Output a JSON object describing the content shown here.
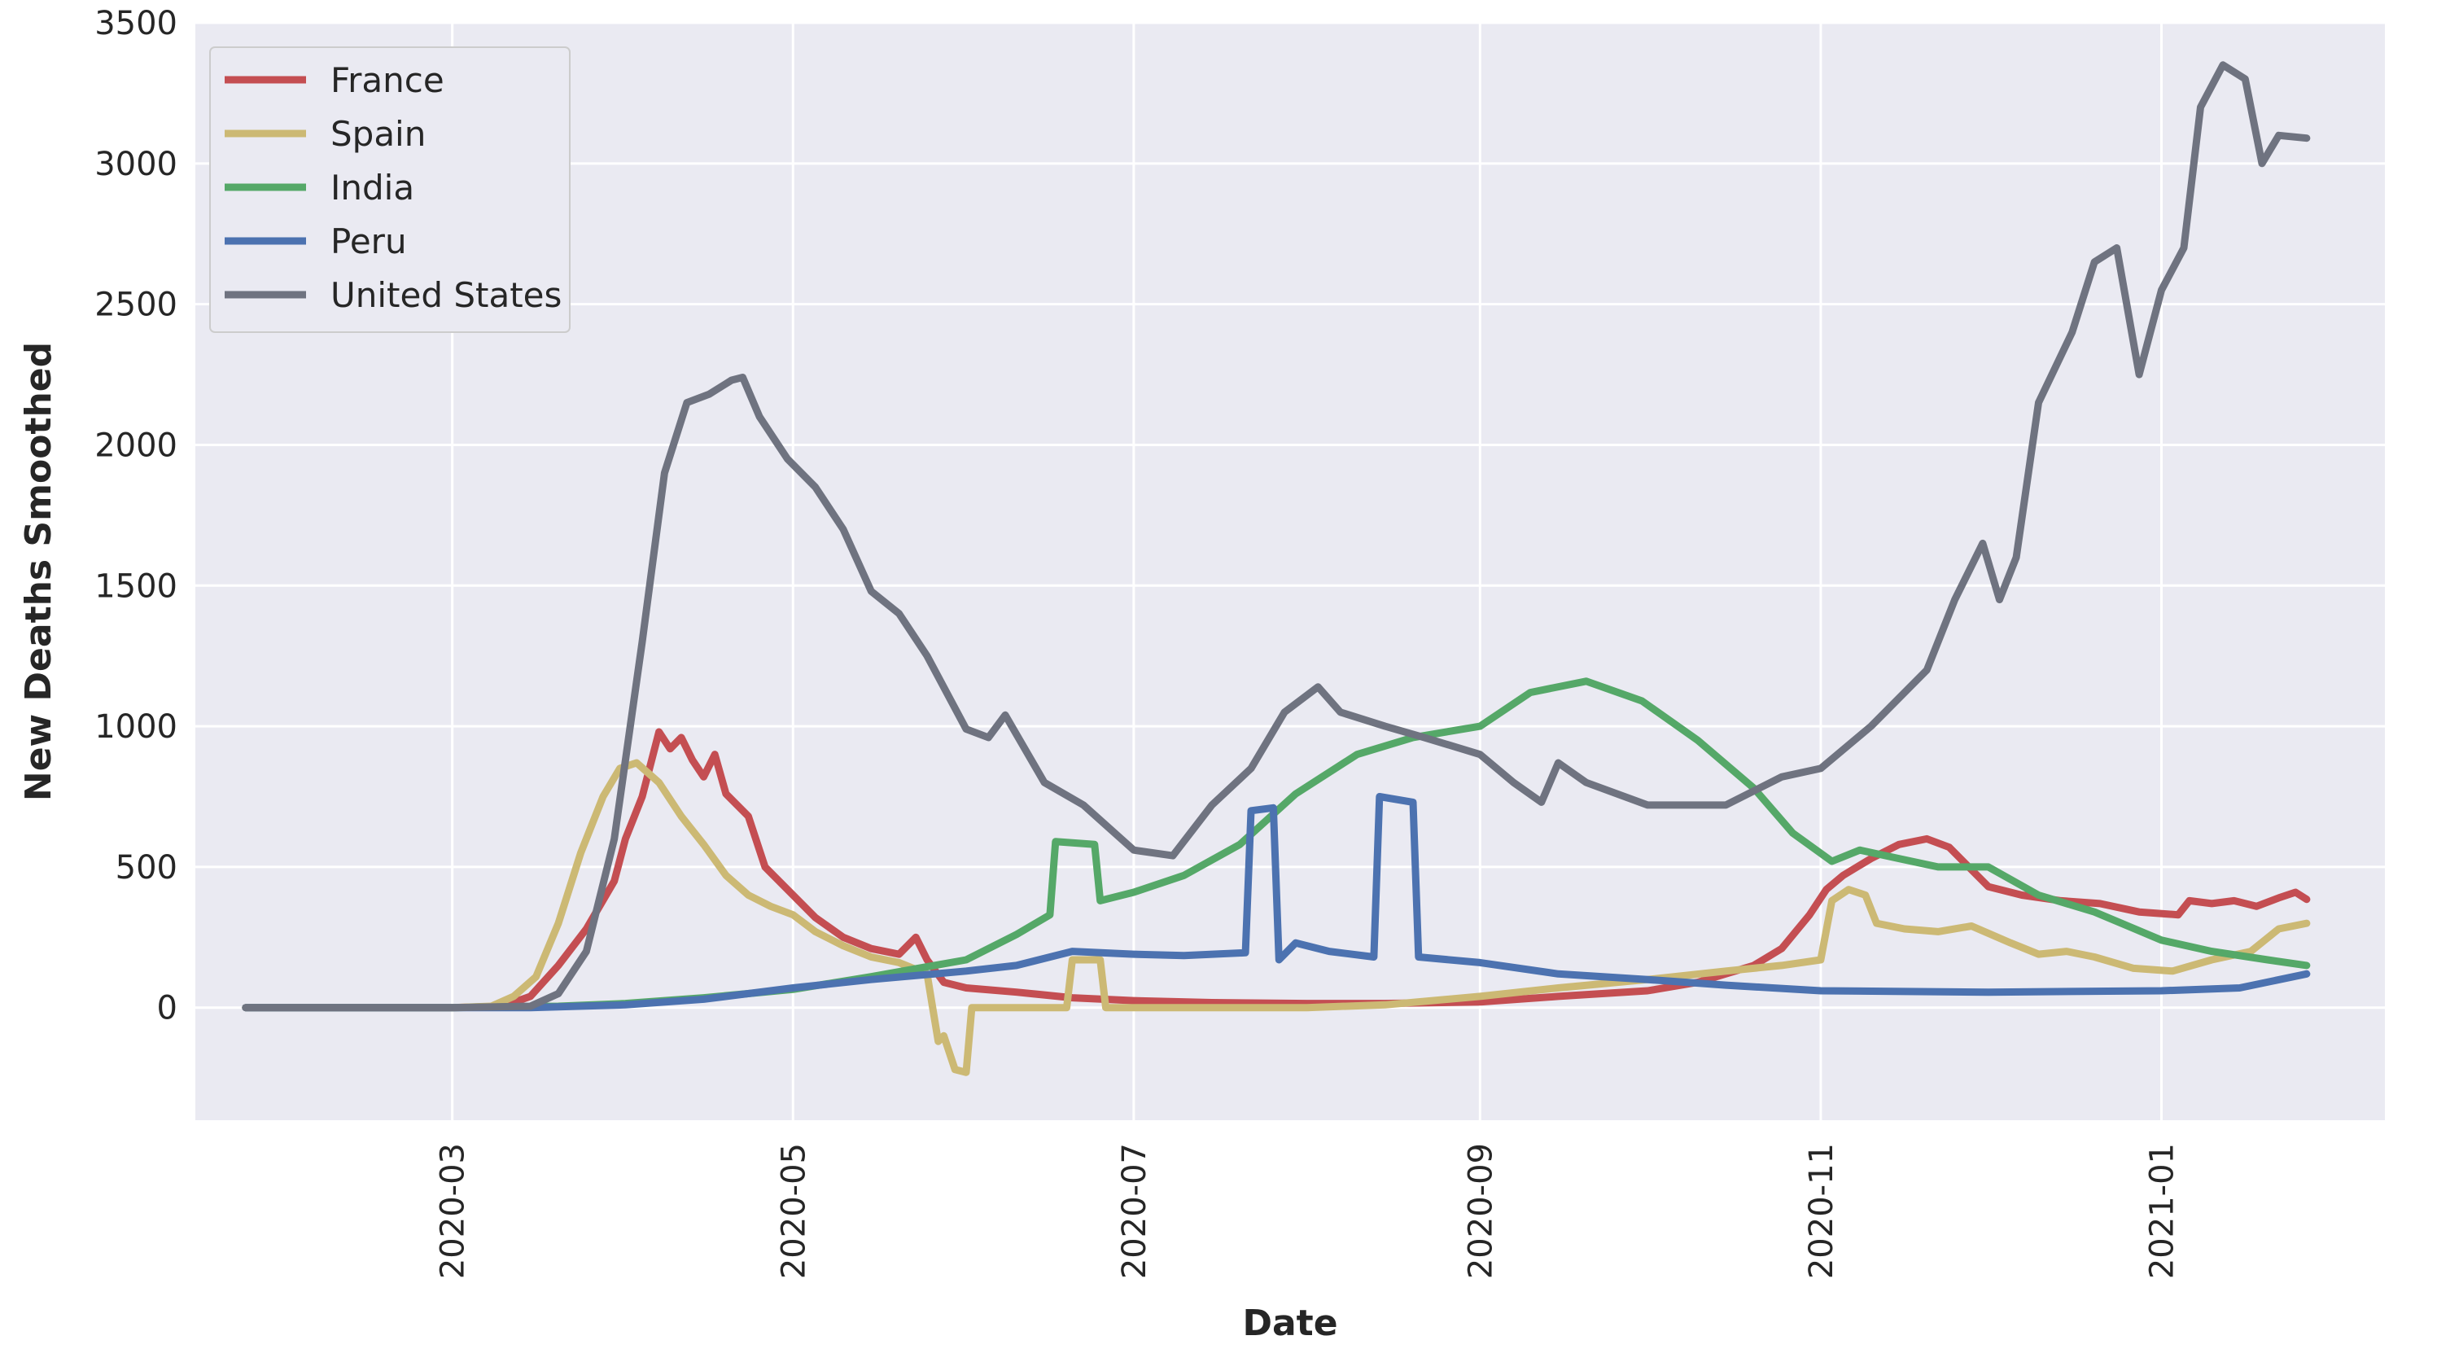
{
  "chart_data": {
    "type": "line",
    "xlabel": "Date",
    "ylabel": "New Deaths Smoothed",
    "xlim": [
      "2020-01-15",
      "2021-02-10"
    ],
    "ylim": [
      -400,
      3500
    ],
    "grid": true,
    "legend_position": "upper-left",
    "x_ticks": [
      "2020-03",
      "2020-05",
      "2020-07",
      "2020-09",
      "2020-11",
      "2021-01"
    ],
    "y_ticks": [
      "0",
      "500",
      "1000",
      "1500",
      "2000",
      "2500",
      "3000",
      "3500"
    ],
    "series": [
      {
        "name": "France",
        "color": "#c44e52",
        "points": [
          [
            "2020-01-24",
            0
          ],
          [
            "2020-02-15",
            0
          ],
          [
            "2020-03-01",
            0
          ],
          [
            "2020-03-10",
            5
          ],
          [
            "2020-03-15",
            40
          ],
          [
            "2020-03-20",
            150
          ],
          [
            "2020-03-25",
            280
          ],
          [
            "2020-03-30",
            450
          ],
          [
            "2020-04-01",
            600
          ],
          [
            "2020-04-04",
            750
          ],
          [
            "2020-04-07",
            980
          ],
          [
            "2020-04-09",
            920
          ],
          [
            "2020-04-11",
            960
          ],
          [
            "2020-04-13",
            880
          ],
          [
            "2020-04-15",
            820
          ],
          [
            "2020-04-17",
            900
          ],
          [
            "2020-04-19",
            760
          ],
          [
            "2020-04-23",
            680
          ],
          [
            "2020-04-26",
            500
          ],
          [
            "2020-04-30",
            420
          ],
          [
            "2020-05-05",
            320
          ],
          [
            "2020-05-10",
            250
          ],
          [
            "2020-05-15",
            210
          ],
          [
            "2020-05-20",
            190
          ],
          [
            "2020-05-23",
            250
          ],
          [
            "2020-05-25",
            170
          ],
          [
            "2020-05-28",
            90
          ],
          [
            "2020-06-01",
            70
          ],
          [
            "2020-06-10",
            55
          ],
          [
            "2020-06-20",
            35
          ],
          [
            "2020-07-01",
            25
          ],
          [
            "2020-07-15",
            18
          ],
          [
            "2020-08-01",
            15
          ],
          [
            "2020-08-15",
            15
          ],
          [
            "2020-09-01",
            20
          ],
          [
            "2020-09-15",
            40
          ],
          [
            "2020-10-01",
            60
          ],
          [
            "2020-10-10",
            90
          ],
          [
            "2020-10-20",
            150
          ],
          [
            "2020-10-25",
            210
          ],
          [
            "2020-10-30",
            330
          ],
          [
            "2020-11-02",
            420
          ],
          [
            "2020-11-05",
            470
          ],
          [
            "2020-11-10",
            530
          ],
          [
            "2020-11-15",
            580
          ],
          [
            "2020-11-20",
            600
          ],
          [
            "2020-11-24",
            570
          ],
          [
            "2020-11-28",
            490
          ],
          [
            "2020-12-01",
            430
          ],
          [
            "2020-12-07",
            400
          ],
          [
            "2020-12-14",
            380
          ],
          [
            "2020-12-21",
            370
          ],
          [
            "2020-12-28",
            340
          ],
          [
            "2021-01-04",
            330
          ],
          [
            "2021-01-06",
            380
          ],
          [
            "2021-01-10",
            370
          ],
          [
            "2021-01-14",
            380
          ],
          [
            "2021-01-18",
            360
          ],
          [
            "2021-01-22",
            390
          ],
          [
            "2021-01-25",
            410
          ],
          [
            "2021-01-27",
            385
          ]
        ]
      },
      {
        "name": "Spain",
        "color": "#ccb974",
        "points": [
          [
            "2020-01-24",
            0
          ],
          [
            "2020-02-15",
            0
          ],
          [
            "2020-03-01",
            0
          ],
          [
            "2020-03-08",
            5
          ],
          [
            "2020-03-12",
            40
          ],
          [
            "2020-03-16",
            110
          ],
          [
            "2020-03-20",
            300
          ],
          [
            "2020-03-24",
            550
          ],
          [
            "2020-03-28",
            750
          ],
          [
            "2020-03-31",
            850
          ],
          [
            "2020-04-03",
            870
          ],
          [
            "2020-04-07",
            800
          ],
          [
            "2020-04-11",
            680
          ],
          [
            "2020-04-15",
            580
          ],
          [
            "2020-04-19",
            470
          ],
          [
            "2020-04-23",
            400
          ],
          [
            "2020-04-27",
            360
          ],
          [
            "2020-05-01",
            330
          ],
          [
            "2020-05-05",
            270
          ],
          [
            "2020-05-10",
            220
          ],
          [
            "2020-05-15",
            180
          ],
          [
            "2020-05-20",
            160
          ],
          [
            "2020-05-25",
            120
          ],
          [
            "2020-05-26",
            0
          ],
          [
            "2020-05-27",
            -120
          ],
          [
            "2020-05-28",
            -100
          ],
          [
            "2020-05-30",
            -220
          ],
          [
            "2020-06-01",
            -230
          ],
          [
            "2020-06-02",
            0
          ],
          [
            "2020-06-10",
            0
          ],
          [
            "2020-06-19",
            0
          ],
          [
            "2020-06-20",
            170
          ],
          [
            "2020-06-25",
            170
          ],
          [
            "2020-06-26",
            0
          ],
          [
            "2020-07-15",
            0
          ],
          [
            "2020-08-01",
            0
          ],
          [
            "2020-08-15",
            10
          ],
          [
            "2020-09-01",
            40
          ],
          [
            "2020-09-15",
            70
          ],
          [
            "2020-10-01",
            100
          ],
          [
            "2020-10-15",
            130
          ],
          [
            "2020-10-25",
            150
          ],
          [
            "2020-11-01",
            170
          ],
          [
            "2020-11-03",
            380
          ],
          [
            "2020-11-06",
            420
          ],
          [
            "2020-11-09",
            400
          ],
          [
            "2020-11-11",
            300
          ],
          [
            "2020-11-16",
            280
          ],
          [
            "2020-11-22",
            270
          ],
          [
            "2020-11-28",
            290
          ],
          [
            "2020-12-05",
            230
          ],
          [
            "2020-12-10",
            190
          ],
          [
            "2020-12-15",
            200
          ],
          [
            "2020-12-20",
            180
          ],
          [
            "2020-12-27",
            140
          ],
          [
            "2021-01-03",
            130
          ],
          [
            "2021-01-10",
            170
          ],
          [
            "2021-01-17",
            200
          ],
          [
            "2021-01-22",
            280
          ],
          [
            "2021-01-27",
            300
          ]
        ]
      },
      {
        "name": "India",
        "color": "#55a868",
        "points": [
          [
            "2020-01-24",
            0
          ],
          [
            "2020-03-01",
            0
          ],
          [
            "2020-03-20",
            5
          ],
          [
            "2020-04-01",
            15
          ],
          [
            "2020-04-15",
            35
          ],
          [
            "2020-05-01",
            65
          ],
          [
            "2020-05-15",
            110
          ],
          [
            "2020-06-01",
            170
          ],
          [
            "2020-06-10",
            260
          ],
          [
            "2020-06-16",
            330
          ],
          [
            "2020-06-17",
            590
          ],
          [
            "2020-06-24",
            580
          ],
          [
            "2020-06-25",
            380
          ],
          [
            "2020-07-01",
            410
          ],
          [
            "2020-07-10",
            470
          ],
          [
            "2020-07-20",
            580
          ],
          [
            "2020-07-30",
            760
          ],
          [
            "2020-08-10",
            900
          ],
          [
            "2020-08-20",
            960
          ],
          [
            "2020-09-01",
            1000
          ],
          [
            "2020-09-10",
            1120
          ],
          [
            "2020-09-20",
            1160
          ],
          [
            "2020-09-30",
            1090
          ],
          [
            "2020-10-10",
            950
          ],
          [
            "2020-10-20",
            780
          ],
          [
            "2020-10-27",
            620
          ],
          [
            "2020-11-03",
            520
          ],
          [
            "2020-11-08",
            560
          ],
          [
            "2020-11-15",
            530
          ],
          [
            "2020-11-22",
            500
          ],
          [
            "2020-12-01",
            500
          ],
          [
            "2020-12-10",
            400
          ],
          [
            "2020-12-20",
            340
          ],
          [
            "2021-01-01",
            240
          ],
          [
            "2021-01-10",
            200
          ],
          [
            "2021-01-20",
            170
          ],
          [
            "2021-01-27",
            150
          ]
        ]
      },
      {
        "name": "Peru",
        "color": "#4c72b0",
        "points": [
          [
            "2020-01-24",
            0
          ],
          [
            "2020-03-15",
            0
          ],
          [
            "2020-04-01",
            10
          ],
          [
            "2020-04-15",
            30
          ],
          [
            "2020-05-01",
            70
          ],
          [
            "2020-05-15",
            100
          ],
          [
            "2020-06-01",
            130
          ],
          [
            "2020-06-10",
            150
          ],
          [
            "2020-06-20",
            200
          ],
          [
            "2020-07-01",
            190
          ],
          [
            "2020-07-10",
            185
          ],
          [
            "2020-07-21",
            195
          ],
          [
            "2020-07-22",
            700
          ],
          [
            "2020-07-26",
            710
          ],
          [
            "2020-07-27",
            170
          ],
          [
            "2020-07-30",
            230
          ],
          [
            "2020-08-05",
            200
          ],
          [
            "2020-08-13",
            180
          ],
          [
            "2020-08-14",
            750
          ],
          [
            "2020-08-20",
            730
          ],
          [
            "2020-08-21",
            180
          ],
          [
            "2020-09-01",
            160
          ],
          [
            "2020-09-15",
            120
          ],
          [
            "2020-10-01",
            100
          ],
          [
            "2020-10-15",
            80
          ],
          [
            "2020-11-01",
            60
          ],
          [
            "2020-12-01",
            55
          ],
          [
            "2021-01-01",
            60
          ],
          [
            "2021-01-15",
            70
          ],
          [
            "2021-01-27",
            120
          ]
        ]
      },
      {
        "name": "United States",
        "color": "#6f7380",
        "points": [
          [
            "2020-01-24",
            0
          ],
          [
            "2020-03-01",
            0
          ],
          [
            "2020-03-15",
            5
          ],
          [
            "2020-03-20",
            50
          ],
          [
            "2020-03-25",
            200
          ],
          [
            "2020-03-30",
            600
          ],
          [
            "2020-04-04",
            1300
          ],
          [
            "2020-04-08",
            1900
          ],
          [
            "2020-04-12",
            2150
          ],
          [
            "2020-04-16",
            2180
          ],
          [
            "2020-04-20",
            2230
          ],
          [
            "2020-04-22",
            2240
          ],
          [
            "2020-04-25",
            2100
          ],
          [
            "2020-04-30",
            1950
          ],
          [
            "2020-05-05",
            1850
          ],
          [
            "2020-05-10",
            1700
          ],
          [
            "2020-05-15",
            1480
          ],
          [
            "2020-05-20",
            1400
          ],
          [
            "2020-05-25",
            1250
          ],
          [
            "2020-06-01",
            990
          ],
          [
            "2020-06-05",
            960
          ],
          [
            "2020-06-08",
            1040
          ],
          [
            "2020-06-15",
            800
          ],
          [
            "2020-06-22",
            720
          ],
          [
            "2020-07-01",
            560
          ],
          [
            "2020-07-08",
            540
          ],
          [
            "2020-07-15",
            720
          ],
          [
            "2020-07-22",
            850
          ],
          [
            "2020-07-28",
            1050
          ],
          [
            "2020-08-03",
            1140
          ],
          [
            "2020-08-07",
            1050
          ],
          [
            "2020-08-15",
            1000
          ],
          [
            "2020-08-22",
            960
          ],
          [
            "2020-09-01",
            900
          ],
          [
            "2020-09-07",
            800
          ],
          [
            "2020-09-12",
            730
          ],
          [
            "2020-09-15",
            870
          ],
          [
            "2020-09-20",
            800
          ],
          [
            "2020-10-01",
            720
          ],
          [
            "2020-10-15",
            720
          ],
          [
            "2020-10-25",
            820
          ],
          [
            "2020-11-01",
            850
          ],
          [
            "2020-11-10",
            1000
          ],
          [
            "2020-11-20",
            1200
          ],
          [
            "2020-11-25",
            1450
          ],
          [
            "2020-11-30",
            1650
          ],
          [
            "2020-12-03",
            1450
          ],
          [
            "2020-12-06",
            1600
          ],
          [
            "2020-12-10",
            2150
          ],
          [
            "2020-12-16",
            2400
          ],
          [
            "2020-12-20",
            2650
          ],
          [
            "2020-12-24",
            2700
          ],
          [
            "2020-12-28",
            2250
          ],
          [
            "2021-01-01",
            2550
          ],
          [
            "2021-01-05",
            2700
          ],
          [
            "2021-01-08",
            3200
          ],
          [
            "2021-01-12",
            3350
          ],
          [
            "2021-01-16",
            3300
          ],
          [
            "2021-01-19",
            3000
          ],
          [
            "2021-01-22",
            3100
          ],
          [
            "2021-01-27",
            3090
          ]
        ]
      }
    ]
  }
}
